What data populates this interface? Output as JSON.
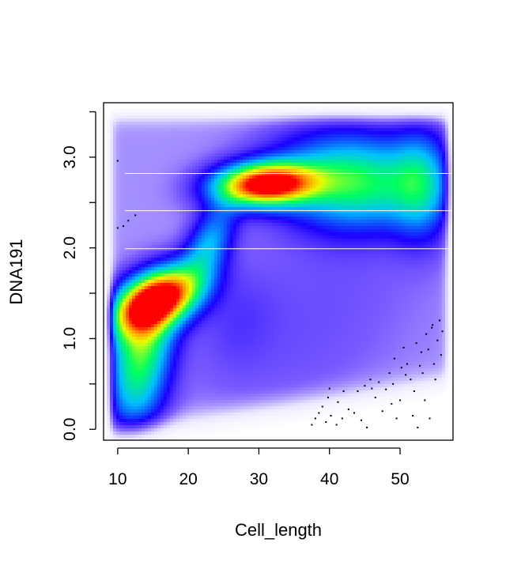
{
  "chart_data": {
    "type": "heatmap",
    "subtype": "density scatter (smoothScatter)",
    "title": "",
    "xlabel": "Cell_length",
    "ylabel": "DNA191",
    "xlim": [
      8,
      57.5
    ],
    "ylim": [
      -0.12,
      3.6
    ],
    "x_ticks": [
      10,
      20,
      30,
      40,
      50
    ],
    "x_tick_labels": [
      "10",
      "20",
      "30",
      "40",
      "50"
    ],
    "y_ticks": [
      0,
      0.5,
      1,
      1.5,
      2,
      2.5,
      3,
      3.5
    ],
    "y_tick_labels": [
      "0.0",
      "",
      "1.0",
      "",
      "2.0",
      "",
      "3.0",
      ""
    ],
    "grid": false,
    "legend": "none",
    "colors": [
      "#ffffff",
      "#eae6ff",
      "#7b5cff",
      "#1a00ff",
      "#00bfff",
      "#00ff60",
      "#e8ff00",
      "#ff9a00",
      "#ff0000"
    ],
    "density_components": [
      {
        "x": 15.5,
        "y": 1.42,
        "sx": 4.2,
        "sy": 0.24,
        "rho": 0.45,
        "w": 1.0
      },
      {
        "x": 31,
        "y": 2.7,
        "sx": 4.8,
        "sy": 0.16,
        "rho": 0.1,
        "w": 0.92
      },
      {
        "x": 13.5,
        "y": 0.9,
        "sx": 3.0,
        "sy": 0.38,
        "rho": 0.2,
        "w": 0.45
      },
      {
        "x": 23,
        "y": 2.05,
        "sx": 2.5,
        "sy": 0.3,
        "rho": 0.5,
        "w": 0.28
      },
      {
        "x": 45,
        "y": 2.7,
        "sx": 6.5,
        "sy": 0.32,
        "rho": 0.0,
        "w": 0.33
      },
      {
        "x": 53,
        "y": 2.7,
        "sx": 2.8,
        "sy": 0.4,
        "rho": 0.0,
        "w": 0.27
      },
      {
        "x": 12.5,
        "y": 0.25,
        "sx": 3.0,
        "sy": 0.35,
        "rho": 0.0,
        "w": 0.2
      },
      {
        "x": 40,
        "y": 2.85,
        "sx": 7.0,
        "sy": 0.42,
        "rho": 0.0,
        "w": 0.16
      },
      {
        "x": 38,
        "y": 1.2,
        "sx": 12.0,
        "sy": 1.1,
        "rho": 0.55,
        "w": 0.045
      },
      {
        "x": 27,
        "y": 1.2,
        "sx": 4.0,
        "sy": 0.4,
        "rho": 0.2,
        "w": 0.05
      }
    ],
    "horizontal_lines": [
      2.82,
      2.41,
      1.99
    ],
    "outlier_points": [
      [
        10,
        2.96
      ],
      [
        10,
        2.22
      ],
      [
        10.8,
        2.24
      ],
      [
        11.5,
        2.3
      ],
      [
        12.5,
        2.36
      ],
      [
        37.5,
        0.05
      ],
      [
        38,
        0.12
      ],
      [
        38.5,
        0.18
      ],
      [
        39,
        0.25
      ],
      [
        39.5,
        0.08
      ],
      [
        39.8,
        0.35
      ],
      [
        40,
        0.45
      ],
      [
        40.2,
        0.15
      ],
      [
        41,
        0.05
      ],
      [
        41.2,
        0.3
      ],
      [
        41.8,
        0.12
      ],
      [
        42,
        0.42
      ],
      [
        43.5,
        0.18
      ],
      [
        44,
        0.42
      ],
      [
        45,
        0.48
      ],
      [
        45.3,
        0.02
      ],
      [
        45.8,
        0.55
      ],
      [
        46.5,
        0.35
      ],
      [
        47,
        0.52
      ],
      [
        47.5,
        0.2
      ],
      [
        48,
        0.44
      ],
      [
        48.5,
        0.62
      ],
      [
        49,
        0.5
      ],
      [
        49.2,
        0.78
      ],
      [
        49.5,
        0.12
      ],
      [
        50,
        0.32
      ],
      [
        50.5,
        0.9
      ],
      [
        50.8,
        0.6
      ],
      [
        51,
        0.72
      ],
      [
        51.5,
        0.55
      ],
      [
        52,
        0.42
      ],
      [
        52.3,
        0.95
      ],
      [
        52.5,
        0.02
      ],
      [
        52.8,
        0.7
      ],
      [
        53,
        0.85
      ],
      [
        53.5,
        0.32
      ],
      [
        53.7,
        1.05
      ],
      [
        54,
        0.88
      ],
      [
        54.2,
        0.12
      ],
      [
        54.5,
        1.12
      ],
      [
        54.8,
        0.72
      ],
      [
        55,
        0.55
      ],
      [
        55.3,
        0.98
      ],
      [
        55.6,
        1.2
      ],
      [
        55.8,
        0.82
      ],
      [
        56,
        1.08
      ],
      [
        54.6,
        1.15
      ],
      [
        53.2,
        0.62
      ],
      [
        48.8,
        0.28
      ],
      [
        46,
        0.45
      ],
      [
        44.5,
        0.1
      ],
      [
        42.7,
        0.22
      ],
      [
        51.8,
        0.15
      ],
      [
        50.2,
        0.68
      ]
    ]
  }
}
